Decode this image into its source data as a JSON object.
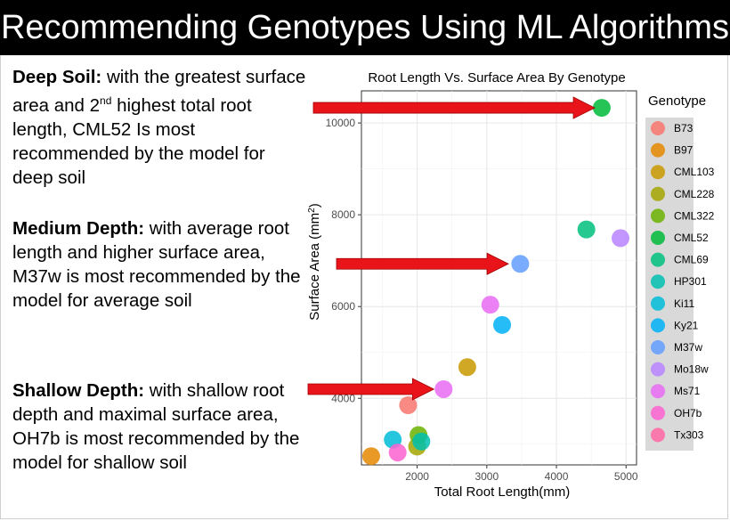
{
  "slide": {
    "title": "Recommending Genotypes Using ML Algorithms",
    "sections": [
      {
        "heading": "Deep Soil:",
        "body": " with the greatest surface area and 2",
        "sup": "nd",
        "body2": " highest total root length, CML52 Is most recommended by the model for deep soil"
      },
      {
        "heading": "Medium Depth:",
        "body": " with average root length and higher surface area, M37w is most recommended by the model for average soil"
      },
      {
        "heading": "Shallow Depth:",
        "body": " with shallow root depth and maximal surface area, OH7b is most recommended by the model for shallow soil"
      }
    ]
  },
  "chart_data": {
    "type": "scatter",
    "title": "Root Length Vs. Surface Area By Genotype",
    "xlabel": "Total Root Length(mm)",
    "ylabel_main": "Surface Area (mm",
    "ylabel_sup": "2",
    "ylabel_end": ")",
    "xlim": [
      1200,
      5150
    ],
    "ylim": [
      2550,
      10700
    ],
    "xticks": [
      2000,
      3000,
      4000,
      5000
    ],
    "yticks": [
      4000,
      6000,
      8000,
      10000
    ],
    "grid": true,
    "legend_title": "Genotype",
    "legend_position": "right",
    "series": [
      {
        "name": "B73",
        "color": "#F8766D",
        "points": [
          [
            1870,
            3850
          ]
        ]
      },
      {
        "name": "B97",
        "color": "#E58700",
        "points": [
          [
            1340,
            2740
          ]
        ]
      },
      {
        "name": "CML103",
        "color": "#C99800",
        "points": [
          [
            2720,
            4680
          ]
        ]
      },
      {
        "name": "CML228",
        "color": "#A3A500",
        "points": [
          [
            2000,
            2950
          ]
        ]
      },
      {
        "name": "CML322",
        "color": "#6BB100",
        "points": [
          [
            2020,
            3200
          ]
        ]
      },
      {
        "name": "CML52",
        "color": "#00BA38",
        "points": [
          [
            4650,
            10330
          ]
        ]
      },
      {
        "name": "CML69",
        "color": "#00BF7D",
        "points": [
          [
            4430,
            7680
          ]
        ]
      },
      {
        "name": "HP301",
        "color": "#00C0AF",
        "points": [
          [
            2060,
            3060
          ]
        ]
      },
      {
        "name": "Ki11",
        "color": "#00BCD8",
        "points": [
          [
            1650,
            3100
          ]
        ]
      },
      {
        "name": "Ky21",
        "color": "#00B0F6",
        "points": [
          [
            3220,
            5600
          ]
        ]
      },
      {
        "name": "M37w",
        "color": "#619CFF",
        "points": [
          [
            3480,
            6930
          ]
        ]
      },
      {
        "name": "Mo18w",
        "color": "#B983FF",
        "points": [
          [
            4920,
            7490
          ]
        ]
      },
      {
        "name": "Ms71",
        "color": "#E76BF3",
        "points": [
          [
            3050,
            6040
          ],
          [
            2380,
            4200
          ]
        ]
      },
      {
        "name": "OH7b",
        "color": "#FD61D1",
        "points": [
          [
            1720,
            2820
          ]
        ]
      },
      {
        "name": "Tx303",
        "color": "#FF67A4",
        "points": []
      }
    ],
    "arrows": [
      {
        "target_y": 10330,
        "to_x": 4550
      },
      {
        "target_y": 6930,
        "to_x": 3310
      },
      {
        "target_y": 4200,
        "to_x": 2240
      }
    ]
  }
}
